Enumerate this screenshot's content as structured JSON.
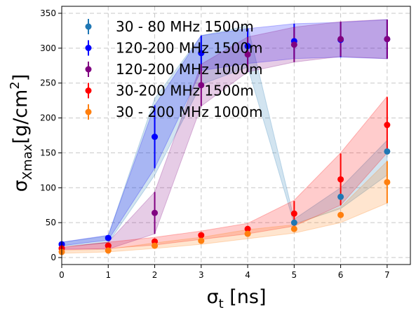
{
  "chart_data": {
    "type": "scatter",
    "xlabel_main": "σ",
    "xlabel_sub": "t",
    "xlabel_rest": " [ns]",
    "ylabel_main": "σ",
    "ylabel_sub": "Xmax",
    "ylabel_rest": "[g/cm",
    "ylabel_sup": "2",
    "ylabel_close": "]",
    "xlim": [
      0,
      7.5
    ],
    "ylim": [
      -10,
      360
    ],
    "grid": true,
    "legend_placement": "top-left",
    "x": [
      0,
      1,
      2,
      3,
      4,
      5,
      6,
      7
    ],
    "xticks": [
      "0",
      "1",
      "2",
      "3",
      "4",
      "5",
      "6",
      "7"
    ],
    "yticks": [
      0,
      50,
      100,
      150,
      200,
      250,
      300,
      350
    ],
    "series": [
      {
        "name": "30 - 80 MHz 1500m",
        "color": "#1f77b4",
        "values": [
          19,
          28,
          173,
          293,
          303,
          50,
          87,
          152
        ],
        "errors": [
          0,
          0,
          45,
          25,
          25,
          0,
          0,
          0
        ],
        "band_low": [
          16,
          21,
          118,
          248,
          273,
          48,
          70,
          118
        ],
        "band_high": [
          22,
          31,
          228,
          318,
          332,
          55,
          100,
          168
        ],
        "band_color": "#1f77b4"
      },
      {
        "name": "120-200 MHz 1500m",
        "color": "#0000ff",
        "values": [
          19,
          28,
          173,
          293,
          303,
          310,
          312,
          313
        ],
        "errors": [
          0,
          0,
          45,
          25,
          25,
          25,
          25,
          28
        ],
        "band_low": [
          17,
          25,
          128,
          268,
          278,
          285,
          287,
          285
        ],
        "band_high": [
          22,
          32,
          218,
          318,
          328,
          335,
          337,
          341
        ],
        "band_color": "#0000ff"
      },
      {
        "name": "120-200 MHz 1000m",
        "color": "#800080",
        "values": [
          13,
          17,
          64,
          247,
          291,
          305,
          313,
          313
        ],
        "errors": [
          0,
          0,
          30,
          30,
          25,
          25,
          25,
          28
        ],
        "band_low": [
          12,
          12,
          34,
          217,
          266,
          280,
          288,
          285
        ],
        "band_high": [
          14,
          22,
          94,
          277,
          316,
          330,
          338,
          341
        ],
        "band_color": "#800080"
      },
      {
        "name": "30-200 MHz 1500m",
        "color": "#ff0000",
        "values": [
          13,
          17,
          23,
          32,
          41,
          63,
          112,
          190
        ],
        "errors": [
          0,
          0,
          0,
          0,
          0,
          18,
          37,
          40
        ],
        "band_low": [
          11,
          13,
          18,
          26,
          34,
          45,
          75,
          150
        ],
        "band_high": [
          15,
          22,
          29,
          38,
          49,
          82,
          150,
          231
        ],
        "band_color": "#ff0000"
      },
      {
        "name": "30 - 200 MHz 1000m",
        "color": "#ff7f0e",
        "values": [
          8,
          10,
          17,
          24,
          34,
          41,
          61,
          108
        ],
        "errors": [
          0,
          0,
          0,
          0,
          0,
          0,
          0,
          30
        ],
        "band_low": [
          6,
          8,
          13,
          19,
          27,
          35,
          50,
          78
        ],
        "band_high": [
          10,
          12,
          21,
          29,
          40,
          47,
          72,
          138
        ],
        "band_color": "#ff7f0e"
      }
    ]
  }
}
